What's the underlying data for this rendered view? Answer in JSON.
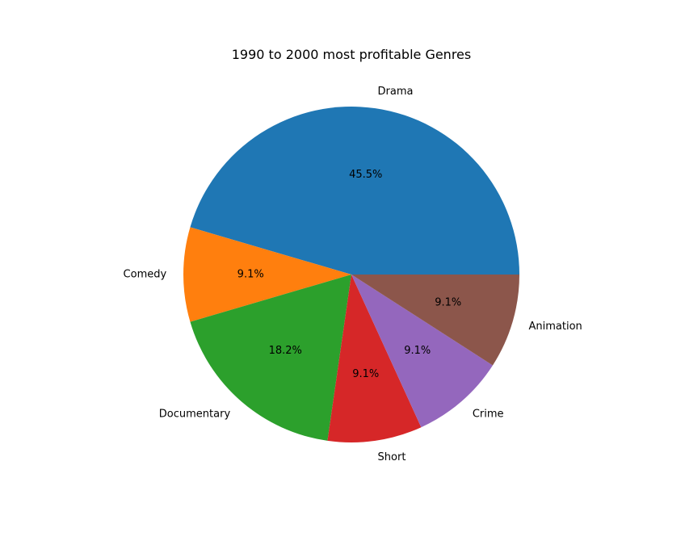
{
  "chart_data": {
    "type": "pie",
    "title": "1990 to 2000 most profitable Genres",
    "categories": [
      "Drama",
      "Comedy",
      "Documentary",
      "Short",
      "Crime",
      "Animation"
    ],
    "values": [
      5,
      1,
      2,
      1,
      1,
      1
    ],
    "percent_labels": [
      "45.5%",
      "9.1%",
      "18.2%",
      "9.1%",
      "9.1%",
      "9.1%"
    ],
    "colors": [
      "#1f77b4",
      "#ff7f0e",
      "#2ca02c",
      "#d62728",
      "#9467bd",
      "#8c564b"
    ],
    "start_angle_deg": 0,
    "direction": "counterclockwise",
    "legend": "none"
  }
}
